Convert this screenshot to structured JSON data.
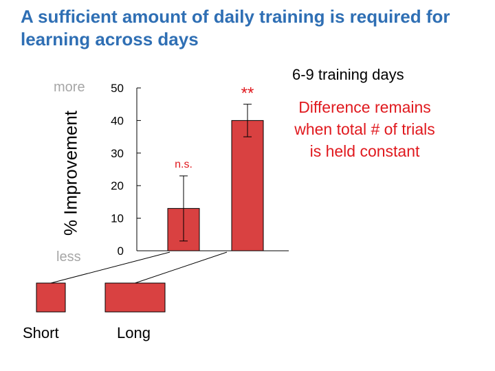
{
  "title": "A sufficient amount of daily training is required for learning across days",
  "subtitle": "6-9 training days",
  "annotation": [
    "Difference remains",
    "when total # of trials",
    "is held constant"
  ],
  "axis_hint_top": "more",
  "axis_hint_bottom": "less",
  "colors": {
    "bar": "#d94141",
    "title": "#2f6fb4",
    "annotation": "#e0191e",
    "hint": "#a6a6a6"
  },
  "chart_data": {
    "type": "bar",
    "categories": [
      "Short",
      "Long"
    ],
    "values": [
      13,
      40
    ],
    "error": [
      10,
      5
    ],
    "significance": [
      "n.s.",
      "**"
    ],
    "ylabel": "% Improvement",
    "ylim": [
      0,
      50
    ],
    "yticks": [
      0,
      10,
      20,
      30,
      40,
      50
    ],
    "grid": false
  },
  "legend": {
    "items": [
      "Short",
      "Long"
    ]
  }
}
